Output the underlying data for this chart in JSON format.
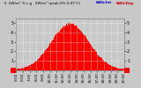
{
  "title": "Il. 0W/m² % c.g   0W/m² (peak:0% 0.0T°C)",
  "title_color": "#000000",
  "legend_label1": "kWh/Int",
  "legend_label2": "kWh/Day",
  "legend_color1": "#0000cc",
  "legend_color2": "#cc0000",
  "background_color": "#c8c8c8",
  "plot_bg_color": "#c8c8c8",
  "bar_color": "#ff0000",
  "grid_color": "#ffffff",
  "yticks": [
    0,
    1,
    2,
    3,
    4,
    5
  ],
  "ylim": [
    0,
    5.5
  ],
  "x_start_hour": 5.0,
  "x_end_hour": 21.0,
  "peak_hour": 13.0,
  "peak_value": 4.8,
  "sigma": 2.8,
  "num_bars": 144,
  "noise_seed": 42,
  "noise_scale": 0.25,
  "xtick_hours": [
    5,
    6,
    7,
    8,
    9,
    10,
    11,
    12,
    13,
    14,
    15,
    16,
    17,
    18,
    19,
    20,
    21
  ]
}
